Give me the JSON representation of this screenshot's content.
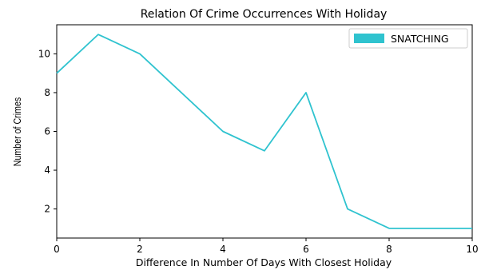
{
  "chart_data": {
    "type": "line",
    "title": "Relation Of Crime Occurrences With Holiday",
    "xlabel": "Difference In Number Of Days With Closest Holiday",
    "ylabel": "Number of Crimes",
    "xlim": [
      0,
      10
    ],
    "ylim": [
      0.5,
      11.5
    ],
    "xticks": [
      0,
      2,
      4,
      6,
      8,
      10
    ],
    "yticks": [
      2,
      4,
      6,
      8,
      10
    ],
    "grid": false,
    "legend_position": "top-right",
    "series": [
      {
        "name": "SNATCHING",
        "color": "#2fc3cf",
        "x": [
          0,
          1,
          2,
          4,
          5,
          6,
          7,
          8,
          10
        ],
        "y": [
          9,
          11,
          10,
          6,
          5,
          8,
          2,
          1,
          1
        ]
      }
    ]
  }
}
